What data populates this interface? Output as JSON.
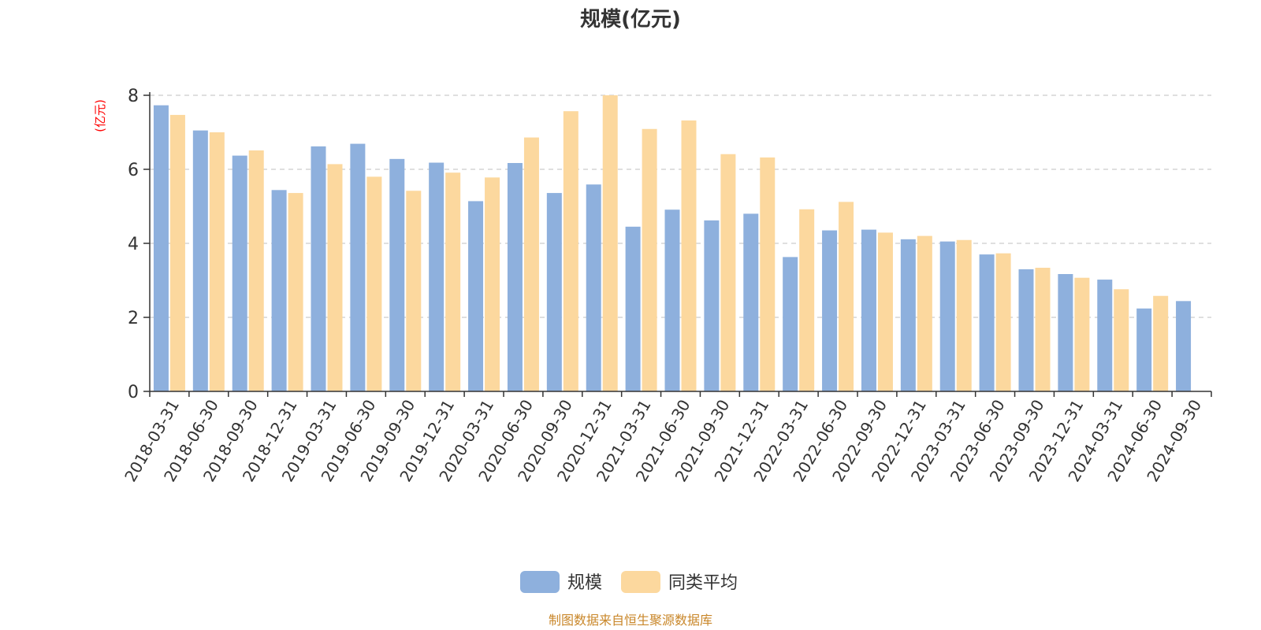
{
  "chart_data": {
    "type": "bar",
    "title": "规模(亿元)",
    "ylabel": "(亿元)",
    "xlabel": "",
    "ylim": [
      0,
      8
    ],
    "yticks": [
      0,
      2,
      4,
      6,
      8
    ],
    "grid": "horizontal dashed",
    "legend_position": "bottom-center",
    "categories": [
      "2018-03-31",
      "2018-06-30",
      "2018-09-30",
      "2018-12-31",
      "2019-03-31",
      "2019-06-30",
      "2019-09-30",
      "2019-12-31",
      "2020-03-31",
      "2020-06-30",
      "2020-09-30",
      "2020-12-31",
      "2021-03-31",
      "2021-06-30",
      "2021-09-30",
      "2021-12-31",
      "2022-03-31",
      "2022-06-30",
      "2022-09-30",
      "2022-12-31",
      "2023-03-31",
      "2023-06-30",
      "2023-09-30",
      "2023-12-31",
      "2024-03-31",
      "2024-06-30",
      "2024-09-30"
    ],
    "series": [
      {
        "name": "规模",
        "color": "#8eb0dd",
        "values": [
          7.73,
          7.05,
          6.37,
          5.44,
          6.62,
          6.69,
          6.28,
          6.18,
          5.14,
          6.17,
          5.36,
          5.59,
          4.45,
          4.91,
          4.62,
          4.8,
          3.63,
          4.35,
          4.37,
          4.11,
          4.05,
          3.7,
          3.3,
          3.17,
          3.02,
          2.24,
          2.44
        ]
      },
      {
        "name": "同类平均",
        "color": "#fcd89e",
        "values": [
          7.47,
          7.0,
          6.51,
          5.36,
          6.14,
          5.8,
          5.42,
          5.91,
          5.78,
          6.86,
          7.57,
          8.0,
          7.09,
          7.32,
          6.41,
          6.32,
          4.92,
          5.12,
          4.29,
          4.2,
          4.09,
          3.73,
          3.34,
          3.07,
          2.76,
          2.58,
          null
        ]
      }
    ]
  },
  "footer": {
    "source": "制图数据来自恒生聚源数据库"
  }
}
